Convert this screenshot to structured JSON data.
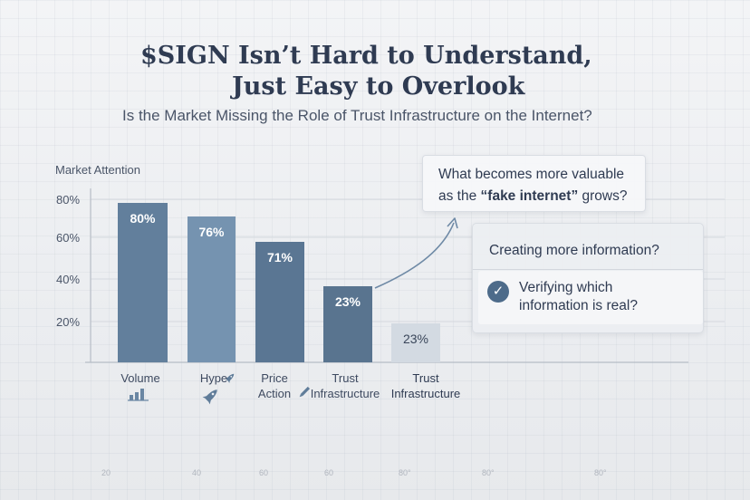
{
  "header": {
    "title_line1": "$SIGN Isn’t Hard to Understand,",
    "title_line2": "Just Easy to Overlook",
    "subtitle": "Is the Market Missing the Role of Trust Infrastructure on the Internet?"
  },
  "chart_data": {
    "type": "bar",
    "ylabel": "Market Attention",
    "ylim": [
      0,
      80
    ],
    "yticks": [
      "80%",
      "60%",
      "40%",
      "20%"
    ],
    "categories": [
      "Volume",
      "Hype",
      "Price Action",
      "Trust Infrastructure",
      "Trust Infrastructure"
    ],
    "category_lines": [
      [
        "Volume"
      ],
      [
        "Hype"
      ],
      [
        "Price",
        "Action"
      ],
      [
        "Trust",
        "Infrastructure"
      ],
      [
        "Trust",
        "Infrastructure"
      ]
    ],
    "values": [
      80,
      76,
      71,
      23,
      23
    ],
    "data_labels": [
      "80%",
      "76%",
      "71%",
      "23%",
      "23%"
    ],
    "category_icons": [
      "bar-chart-icon",
      "rocket-icon",
      "pen-icon",
      "",
      ""
    ],
    "bottom_axis_ticks": [
      "20",
      "40",
      "60",
      "60",
      "80°",
      "80°",
      "80°"
    ],
    "bar_colors": [
      "#627f9c",
      "#7593b0",
      "#5a7693",
      "#59748f",
      "#d3dae2"
    ]
  },
  "callouts": {
    "question_line1": "What becomes more valuable",
    "question_pre": "as the ",
    "question_bold": "“fake internet”",
    "question_post": " grows?",
    "option1": "Creating more information?",
    "option2_line1": "Verifying which",
    "option2_line2": "information is real?",
    "check_icon": "check-icon"
  },
  "colors": {
    "title": "#2f3b52",
    "accent": "#4d6b8a",
    "bar_light": "#d3dae2",
    "arrow": "#6f8aa6"
  }
}
